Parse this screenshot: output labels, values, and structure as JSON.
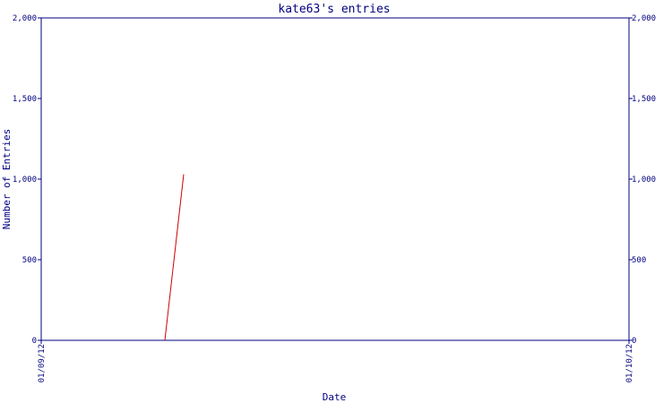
{
  "chart_data": {
    "type": "line",
    "title": "kate63's entries",
    "xlabel": "Date",
    "ylabel": "Number of Entries",
    "x_tick_labels": [
      "01/09/12",
      "01/10/12"
    ],
    "y_ticks": [
      0,
      500,
      1000,
      1500,
      2000
    ],
    "y_tick_labels": [
      "0",
      "500",
      "1,000",
      "1,500",
      "2,000"
    ],
    "ylim": [
      0,
      2000
    ],
    "xlim": [
      "01/09/12",
      "01/10/12"
    ],
    "grid": false,
    "series": [
      {
        "color": "#cc0000",
        "points": [
          {
            "x": "01/09/12",
            "y": 0
          },
          {
            "x": "01/09/12",
            "y": 1030
          }
        ]
      }
    ],
    "axis_color": "#000080",
    "title_color": "#000080"
  }
}
